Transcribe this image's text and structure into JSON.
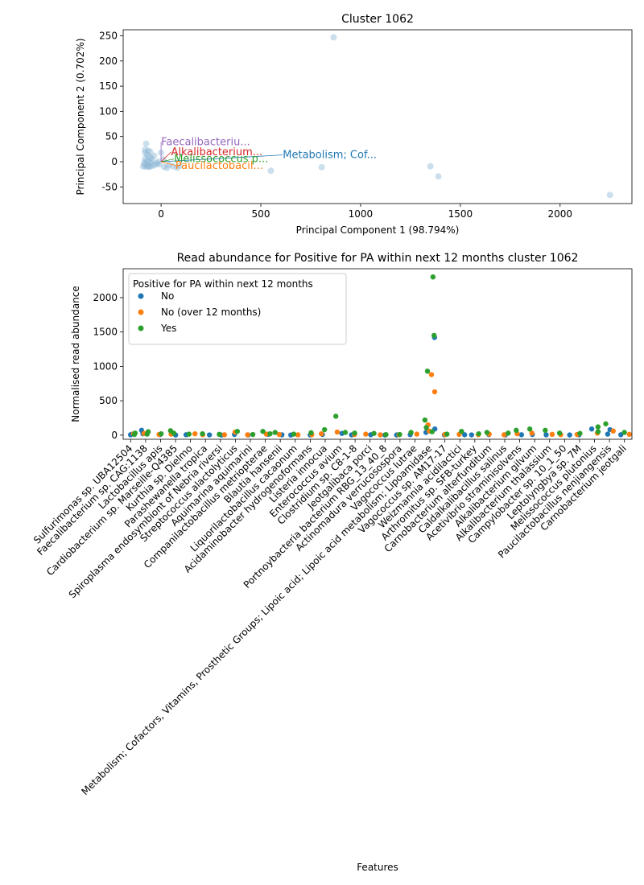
{
  "chart_data": [
    {
      "type": "scatter",
      "title": "Cluster 1062",
      "xlabel": "Principal Component 1 (98.794%)",
      "ylabel": "Principal Component 2 (0.702%)",
      "xlim": [
        -190,
        2360
      ],
      "ylim": [
        -83,
        262
      ],
      "xticks": [
        0,
        500,
        1000,
        1500,
        2000
      ],
      "yticks": [
        -50,
        0,
        50,
        100,
        150,
        200,
        250
      ],
      "point_color": "#8fb8d8",
      "points": [
        [
          865,
          247
        ],
        [
          -75,
          36
        ],
        [
          -80,
          24
        ],
        [
          -65,
          22
        ],
        [
          -80,
          18
        ],
        [
          -55,
          20
        ],
        [
          -70,
          14
        ],
        [
          -60,
          10
        ],
        [
          -80,
          6
        ],
        [
          -72,
          2
        ],
        [
          -62,
          0
        ],
        [
          -50,
          -2
        ],
        [
          -78,
          -4
        ],
        [
          -66,
          -7
        ],
        [
          -80,
          -9
        ],
        [
          -55,
          -9
        ],
        [
          -40,
          -8
        ],
        [
          -30,
          -6
        ],
        [
          -20,
          -3
        ],
        [
          -10,
          -5
        ],
        [
          -45,
          4
        ],
        [
          -58,
          -10
        ],
        [
          -85,
          -2
        ],
        [
          -35,
          12
        ],
        [
          0,
          18
        ],
        [
          15,
          -10
        ],
        [
          40,
          -6
        ],
        [
          60,
          -9
        ],
        [
          80,
          -12
        ],
        [
          95,
          -8
        ],
        [
          10,
          5
        ],
        [
          -15,
          0
        ],
        [
          -90,
          -9
        ],
        [
          -70,
          -10
        ],
        [
          -50,
          8
        ],
        [
          30,
          -12
        ],
        [
          550,
          -18
        ],
        [
          805,
          -11
        ],
        [
          1350,
          -9
        ],
        [
          1390,
          -29
        ],
        [
          2250,
          -66
        ]
      ],
      "annotations": [
        {
          "text": "Faecalibacteriu...",
          "x": 0,
          "y": 33,
          "color": "#9467bd"
        },
        {
          "text": "Alkalibacterium...",
          "x": 50,
          "y": 13,
          "color": "#d62728"
        },
        {
          "text": "Metabolism; Cof...",
          "x": 610,
          "y": 7,
          "color": "#1f77b4"
        },
        {
          "text": "Melissococcus p...",
          "x": 65,
          "y": -1,
          "color": "#2ca02c"
        },
        {
          "text": "Paucilactobacil...",
          "x": 72,
          "y": -14,
          "color": "#ff7f0e"
        }
      ]
    },
    {
      "type": "strip",
      "title": "Read abundance for Positive for PA within next 12 months cluster 1062",
      "xlabel": "Features",
      "ylabel": "Normalised read abundance",
      "ylim": [
        -60,
        2420
      ],
      "yticks": [
        0,
        500,
        1000,
        1500,
        2000
      ],
      "legend": {
        "title": "Positive for PA within next 12 months",
        "position": "top-left",
        "entries": [
          {
            "label": "No",
            "color": "#1f77b4"
          },
          {
            "label": "No (over 12 months)",
            "color": "#ff7f0e"
          },
          {
            "label": "Yes",
            "color": "#2ca02c"
          }
        ]
      },
      "categories": [
        "Sulfurimonas sp. UBA12504",
        "Faecalibacterium sp. CAG:1138",
        "Lactobacillus apis",
        "Cardiobacterium sp. Marseille-Q4385",
        "Kurthia sp. Dielmo",
        "Parashewanella tropica",
        "Spiroplasma endosymbiont of Nebria riversi",
        "Streptococcus alactolyticus",
        "Aquimarina aquimarini",
        "Companilactobacillus metriopterae",
        "Blautia hansenii",
        "Liquorilactobacillus cacaonum",
        "Acidaminobacter hydrogenoformans",
        "Listeria innocua",
        "Enterococcus avium",
        "Clostridium sp. C8-1-8",
        "Jeotgalibaca porci",
        "Portnoybacteria bacterium RBG_13_40_8",
        "Actinomadura verrucosospora",
        "Vagococcus lutrae",
        "Metabolism; Cofactors, Vitamins, Prosthetic Groups; Lipoic acid; Lipoic acid metabolism; Lipoamidase",
        "Vagococcus sp. AM17-17",
        "Weizmannia acidilactici",
        "Arthromitus sp. SFB-turkey",
        "Carnobacterium alterfunditum",
        "Caldalkalibacillus salinus",
        "Acetivibrio straminisolvens",
        "Alkalibacterium gilvum",
        "Alkalibacterium thalassium",
        "Campylobacter sp. 10_1_50",
        "Leptolyngbya sp. 7M",
        "Melissococcus plutonius",
        "Paucilactobacillus nenjiangensis",
        "Carnobacterium jeotgali"
      ],
      "series": [
        {
          "name": "No",
          "color": "#1f77b4",
          "points": [
            [
              0,
              5
            ],
            [
              0,
              12
            ],
            [
              1,
              70
            ],
            [
              1,
              20
            ],
            [
              2,
              8
            ],
            [
              3,
              3
            ],
            [
              4,
              6
            ],
            [
              5,
              4
            ],
            [
              6,
              2
            ],
            [
              7,
              10
            ],
            [
              8,
              3
            ],
            [
              9,
              12
            ],
            [
              10,
              5
            ],
            [
              11,
              2
            ],
            [
              12,
              3
            ],
            [
              13,
              10
            ],
            [
              14,
              25
            ],
            [
              15,
              4
            ],
            [
              16,
              6
            ],
            [
              17,
              2
            ],
            [
              18,
              3
            ],
            [
              19,
              8
            ],
            [
              20,
              1420
            ],
            [
              20,
              90
            ],
            [
              20,
              40
            ],
            [
              21,
              5
            ],
            [
              22,
              6
            ],
            [
              23,
              4
            ],
            [
              24,
              8
            ],
            [
              25,
              3
            ],
            [
              26,
              6
            ],
            [
              27,
              10
            ],
            [
              28,
              5
            ],
            [
              29,
              3
            ],
            [
              30,
              4
            ],
            [
              31,
              90
            ],
            [
              32,
              80
            ],
            [
              32,
              15
            ],
            [
              33,
              6
            ]
          ]
        },
        {
          "name": "No (over 12 months)",
          "color": "#ff7f0e",
          "points": [
            [
              0,
              20
            ],
            [
              1,
              25
            ],
            [
              2,
              10
            ],
            [
              3,
              15
            ],
            [
              4,
              20
            ],
            [
              5,
              8
            ],
            [
              6,
              6
            ],
            [
              7,
              45
            ],
            [
              8,
              5
            ],
            [
              9,
              15
            ],
            [
              10,
              10
            ],
            [
              11,
              5
            ],
            [
              12,
              8
            ],
            [
              13,
              20
            ],
            [
              14,
              45
            ],
            [
              15,
              10
            ],
            [
              16,
              15
            ],
            [
              17,
              5
            ],
            [
              18,
              6
            ],
            [
              19,
              15
            ],
            [
              20,
              880
            ],
            [
              20,
              630
            ],
            [
              20,
              150
            ],
            [
              20,
              60
            ],
            [
              21,
              10
            ],
            [
              22,
              12
            ],
            [
              23,
              8
            ],
            [
              24,
              15
            ],
            [
              25,
              6
            ],
            [
              26,
              20
            ],
            [
              27,
              30
            ],
            [
              28,
              12
            ],
            [
              29,
              8
            ],
            [
              30,
              10
            ],
            [
              31,
              30
            ],
            [
              32,
              60
            ],
            [
              33,
              12
            ]
          ]
        },
        {
          "name": "Yes",
          "color": "#2ca02c",
          "points": [
            [
              0,
              30
            ],
            [
              0,
              10
            ],
            [
              1,
              50
            ],
            [
              1,
              15
            ],
            [
              2,
              20
            ],
            [
              3,
              65
            ],
            [
              3,
              30
            ],
            [
              4,
              15
            ],
            [
              5,
              20
            ],
            [
              6,
              12
            ],
            [
              7,
              55
            ],
            [
              8,
              10
            ],
            [
              9,
              55
            ],
            [
              9,
              20
            ],
            [
              10,
              40
            ],
            [
              11,
              15
            ],
            [
              12,
              35
            ],
            [
              13,
              80
            ],
            [
              14,
              275
            ],
            [
              14,
              40
            ],
            [
              15,
              30
            ],
            [
              16,
              25
            ],
            [
              17,
              8
            ],
            [
              18,
              10
            ],
            [
              19,
              40
            ],
            [
              20,
              2300
            ],
            [
              20,
              1450
            ],
            [
              20,
              930
            ],
            [
              20,
              220
            ],
            [
              20,
              110
            ],
            [
              20,
              50
            ],
            [
              21,
              15
            ],
            [
              22,
              55
            ],
            [
              23,
              20
            ],
            [
              24,
              40
            ],
            [
              25,
              30
            ],
            [
              26,
              70
            ],
            [
              27,
              90
            ],
            [
              28,
              70
            ],
            [
              29,
              30
            ],
            [
              30,
              25
            ],
            [
              31,
              120
            ],
            [
              31,
              50
            ],
            [
              32,
              165
            ],
            [
              33,
              40
            ]
          ]
        }
      ]
    }
  ]
}
